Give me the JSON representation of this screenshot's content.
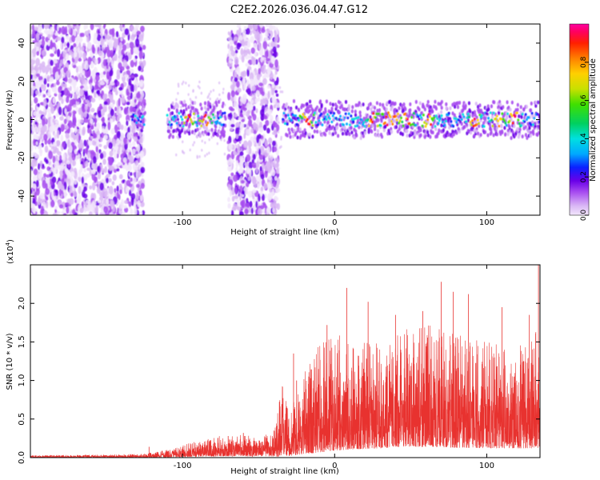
{
  "title": "C2E2.2026.036.04.47.G12",
  "chart_data": [
    {
      "type": "heatmap",
      "title": "C2E2.2026.036.04.47.G12",
      "xlabel": "Height of straight line (km)",
      "ylabel": "Frequency (Hz)",
      "xlim": [
        -200,
        135
      ],
      "ylim": [
        -50,
        50
      ],
      "x_ticks": [
        {
          "value": -100,
          "label": "-100"
        },
        {
          "value": 0,
          "label": "0"
        },
        {
          "value": 100,
          "label": "100"
        }
      ],
      "y_ticks": [
        {
          "value": -40,
          "label": "-40"
        },
        {
          "value": -20,
          "label": "-20"
        },
        {
          "value": 0,
          "label": "0"
        },
        {
          "value": 20,
          "label": "20"
        },
        {
          "value": 40,
          "label": "40"
        }
      ],
      "noise_regions_km": [
        [
          -200,
          -125
        ],
        [
          -70,
          -37
        ]
      ],
      "gap_regions_km": [
        [
          -105,
          -72
        ],
        [
          -37,
          -34
        ]
      ],
      "signal_band": {
        "center_hz": 0,
        "half_width_hz": 6,
        "segments_km": [
          [
            -133,
            -125
          ],
          [
            -110,
            -72
          ],
          [
            -34,
            135
          ]
        ],
        "peak_x_km": [
          -96,
          -85,
          -18,
          25,
          34,
          40,
          48,
          62,
          92,
          108,
          118
        ]
      },
      "colorbar": {
        "label": "Normalized spectral amplitude",
        "range": [
          0,
          1
        ],
        "ticks": [
          {
            "value": 0.0,
            "label": "0.0"
          },
          {
            "value": 0.2,
            "label": "0.2"
          },
          {
            "value": 0.4,
            "label": "0.4"
          },
          {
            "value": 0.6,
            "label": "0.6"
          },
          {
            "value": 0.8,
            "label": "0.8"
          }
        ],
        "colors": [
          "#f2e6fb",
          "#d9b6f5",
          "#a84df0",
          "#6a00e8",
          "#0b20ff",
          "#00a8ff",
          "#00e0e0",
          "#00d060",
          "#40e000",
          "#c8e000",
          "#ffd000",
          "#ff8000",
          "#ff2000",
          "#ff0060",
          "#ff00a0"
        ]
      }
    },
    {
      "type": "line",
      "xlabel": "Height of straight line (km)",
      "ylabel": "SNR (10 * v/v)",
      "y_scale_label": "(x10",
      "y_scale_exponent": "4",
      "xlim": [
        -200,
        135
      ],
      "ylim": [
        0,
        2.5
      ],
      "color": "#e8322f",
      "x_ticks": [
        {
          "value": -100,
          "label": "-100"
        },
        {
          "value": 0,
          "label": "0"
        },
        {
          "value": 100,
          "label": "100"
        }
      ],
      "y_ticks": [
        {
          "value": 0.0,
          "label": "0.0"
        },
        {
          "value": 0.5,
          "label": "0.5"
        },
        {
          "value": 1.0,
          "label": "1.0"
        },
        {
          "value": 1.5,
          "label": "1.5"
        },
        {
          "value": 2.0,
          "label": "2.0"
        }
      ],
      "envelope": {
        "x": [
          -200,
          -150,
          -125,
          -120,
          -110,
          -100,
          -90,
          -80,
          -70,
          -60,
          -50,
          -40,
          -35,
          -30,
          -25,
          -20,
          -10,
          0,
          10,
          20,
          30,
          40,
          50,
          60,
          70,
          80,
          90,
          100,
          110,
          120,
          130,
          135
        ],
        "base": [
          0.01,
          0.01,
          0.01,
          0.02,
          0.03,
          0.05,
          0.08,
          0.1,
          0.12,
          0.12,
          0.12,
          0.1,
          0.1,
          0.15,
          0.2,
          0.3,
          0.45,
          0.6,
          0.7,
          0.75,
          0.8,
          0.9,
          0.95,
          0.92,
          0.9,
          0.85,
          0.85,
          0.8,
          0.8,
          0.8,
          0.8,
          0.8
        ],
        "top": [
          0.03,
          0.04,
          0.05,
          0.07,
          0.1,
          0.16,
          0.22,
          0.27,
          0.3,
          0.3,
          0.25,
          0.35,
          1.0,
          0.6,
          0.8,
          1.1,
          1.5,
          1.6,
          1.6,
          1.55,
          1.5,
          1.6,
          1.7,
          1.75,
          1.7,
          1.6,
          1.55,
          1.5,
          1.45,
          1.45,
          1.6,
          1.7
        ]
      },
      "spikes": [
        {
          "x": -122,
          "y": 0.14
        },
        {
          "x": -70,
          "y": 0.28
        },
        {
          "x": -60,
          "y": 0.32
        },
        {
          "x": -40,
          "y": 0.35
        },
        {
          "x": -27,
          "y": 1.35
        },
        {
          "x": -25,
          "y": 1.0
        },
        {
          "x": -5,
          "y": 1.72
        },
        {
          "x": 8,
          "y": 2.2
        },
        {
          "x": 22,
          "y": 2.02
        },
        {
          "x": 40,
          "y": 1.85
        },
        {
          "x": 58,
          "y": 1.9
        },
        {
          "x": 70,
          "y": 2.28
        },
        {
          "x": 78,
          "y": 2.15
        },
        {
          "x": 88,
          "y": 2.12
        },
        {
          "x": 110,
          "y": 1.95
        },
        {
          "x": 128,
          "y": 1.85
        },
        {
          "x": 134,
          "y": 2.5
        }
      ]
    }
  ]
}
